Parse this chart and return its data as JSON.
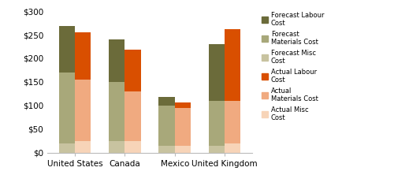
{
  "categories": [
    "United States",
    "Canada",
    "Mexico",
    "United Kingdom"
  ],
  "forecast": {
    "misc": [
      20,
      25,
      15,
      15
    ],
    "materials": [
      150,
      125,
      85,
      95
    ],
    "labour": [
      98,
      90,
      18,
      120
    ]
  },
  "actual": {
    "misc": [
      25,
      25,
      15,
      20
    ],
    "materials": [
      130,
      105,
      80,
      90
    ],
    "labour": [
      100,
      88,
      12,
      152
    ]
  },
  "colors": {
    "forecast_misc": "#c8c3a0",
    "forecast_materials": "#a8a87a",
    "forecast_labour": "#6b6b3a",
    "actual_misc": "#f7d4b8",
    "actual_materials": "#f0aa80",
    "actual_labour": "#d94f00"
  },
  "ylim": [
    0,
    300
  ],
  "yticks": [
    0,
    50,
    100,
    150,
    200,
    250,
    300
  ],
  "ytick_labels": [
    "$0",
    "$50",
    "$100",
    "$150",
    "$200",
    "$250",
    "$300"
  ],
  "bar_width": 0.32,
  "figsize": [
    5.0,
    2.36
  ],
  "dpi": 100
}
